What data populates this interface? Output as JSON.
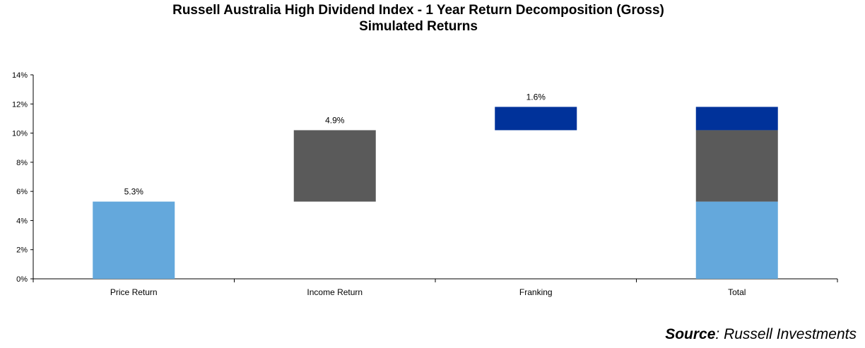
{
  "chart_data": {
    "type": "bar",
    "subtype": "waterfall",
    "title": "Russell Australia High Dividend Index - 1 Year Return Decomposition (Gross)",
    "subtitle": "Simulated Returns",
    "categories": [
      "Price Return",
      "Income Return",
      "Franking",
      "Total"
    ],
    "series": [
      {
        "category": "Price Return",
        "base": 0,
        "value": 5.3,
        "label": "5.3%",
        "color": "#64a8dc"
      },
      {
        "category": "Income Return",
        "base": 5.3,
        "value": 4.9,
        "label": "4.9%",
        "color": "#5a5a5a"
      },
      {
        "category": "Franking",
        "base": 10.2,
        "value": 1.6,
        "label": "1.6%",
        "color": "#00329a"
      }
    ],
    "total_stack": [
      {
        "base": 0,
        "value": 5.3,
        "color": "#64a8dc"
      },
      {
        "base": 5.3,
        "value": 4.9,
        "color": "#5a5a5a"
      },
      {
        "base": 10.2,
        "value": 1.6,
        "color": "#00329a"
      }
    ],
    "yticks": [
      "0%",
      "2%",
      "4%",
      "6%",
      "8%",
      "10%",
      "12%",
      "14%"
    ],
    "ylim": [
      0,
      14
    ],
    "grid": false,
    "legend": "none"
  },
  "source": {
    "label": "Source",
    "text": ": Russell Investments"
  }
}
